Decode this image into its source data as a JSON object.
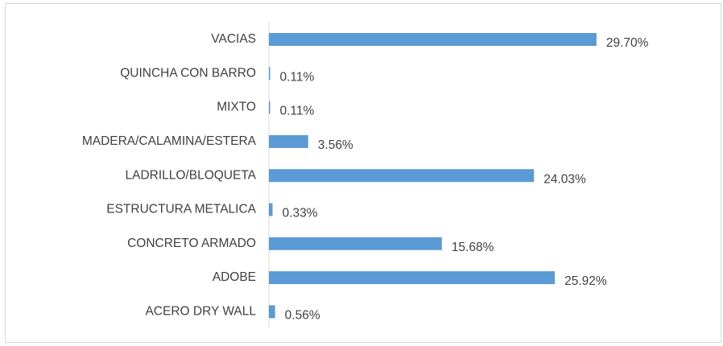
{
  "chart_data": {
    "type": "hbar",
    "categories": [
      "VACIAS",
      "QUINCHA CON BARRO",
      "MIXTO",
      "MADERA/CALAMINA/ESTERA",
      "LADRILLO/BLOQUETA",
      "ESTRUCTURA METALICA",
      "CONCRETO ARMADO",
      "ADOBE",
      "ACERO DRY WALL"
    ],
    "values": [
      29.7,
      0.11,
      0.11,
      3.56,
      24.03,
      0.33,
      15.68,
      25.92,
      0.56
    ],
    "value_labels": [
      "29.70%",
      "0.11%",
      "0.11%",
      "3.56%",
      "24.03%",
      "0.33%",
      "15.68%",
      "25.92%",
      "0.56%"
    ],
    "color": "#5b9bd5"
  }
}
